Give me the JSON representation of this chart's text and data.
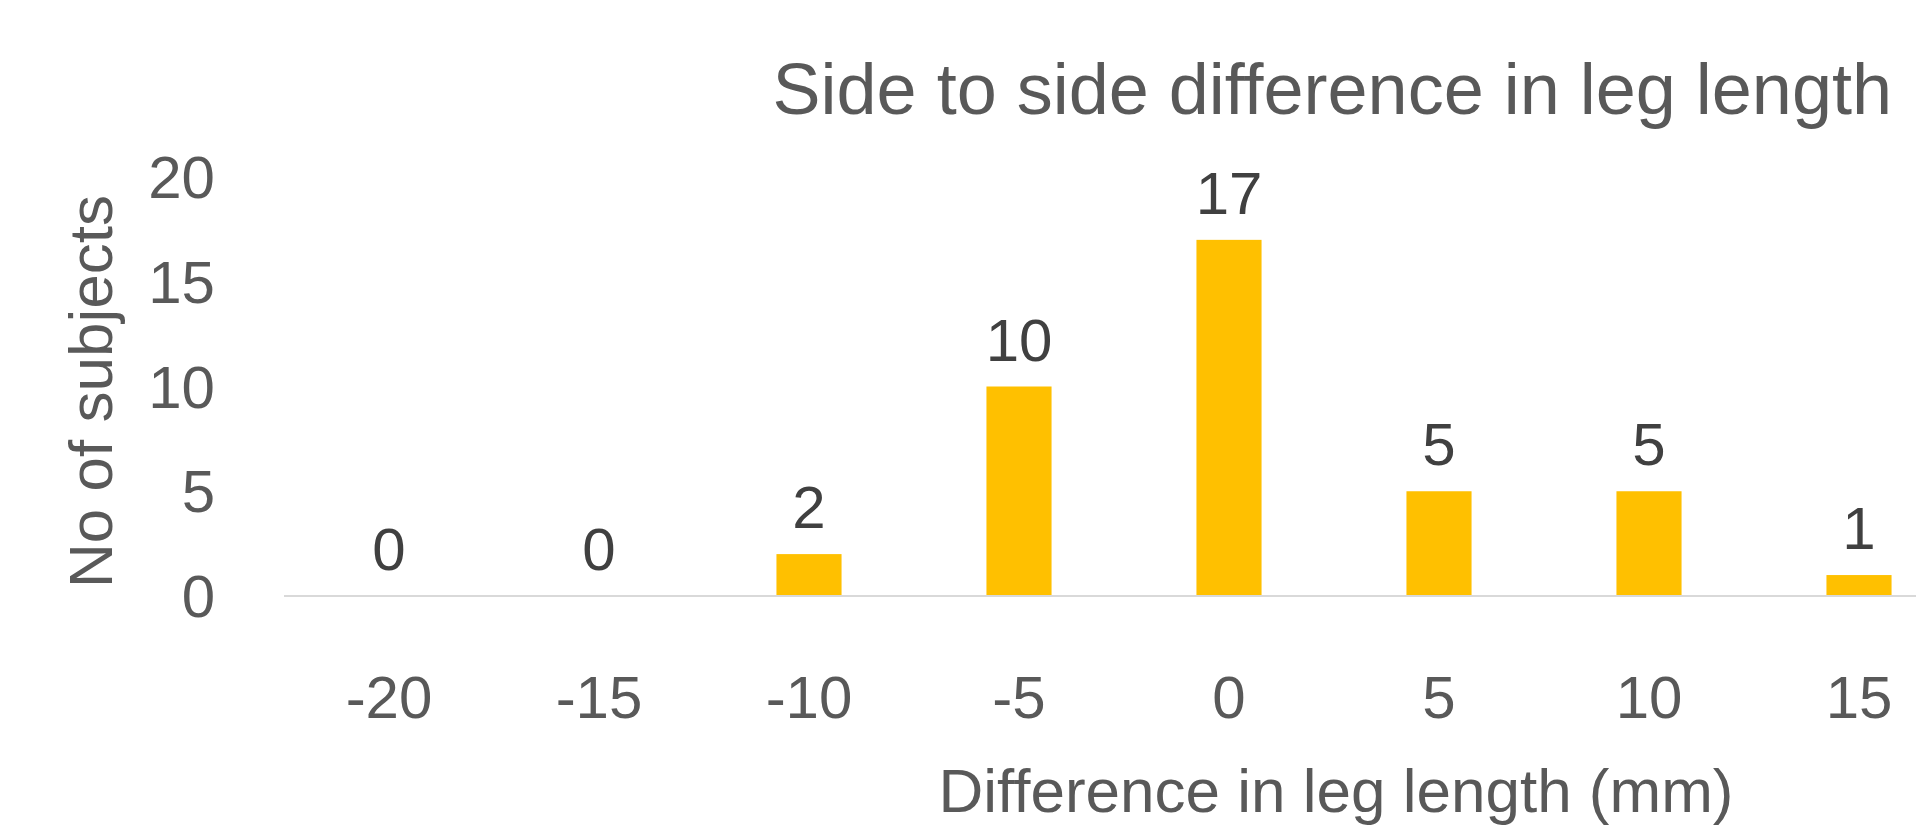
{
  "chart_data": {
    "type": "bar",
    "title": "Side to side difference in leg length",
    "xlabel": "Difference in leg length (mm)",
    "ylabel": "No of subjects",
    "categories": [
      "-20",
      "-15",
      "-10",
      "-5",
      "0",
      "5",
      "10",
      "15"
    ],
    "values": [
      0,
      0,
      2,
      10,
      17,
      5,
      5,
      1
    ],
    "color": "#ffc000",
    "ylim": [
      0,
      20
    ],
    "yticks": [
      0,
      5,
      10,
      15,
      20
    ],
    "data_labels": true,
    "grid": false
  }
}
